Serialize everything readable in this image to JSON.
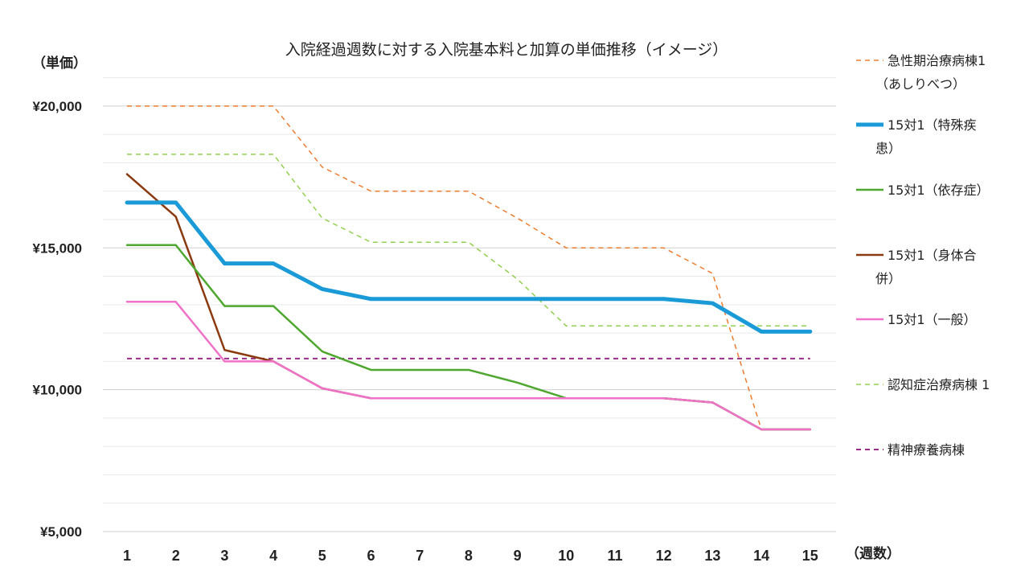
{
  "chart_data": {
    "type": "line",
    "title": "入院経過週数に対する入院基本料と加算の単価推移（イメージ）",
    "ylabel": "（単価）",
    "xlabel": "（週数）",
    "ylim": [
      5000,
      21500
    ],
    "ytick_values": [
      5000,
      10000,
      15000,
      20000
    ],
    "ytick_labels": [
      "¥5,000",
      "¥10,000",
      "¥15,000",
      "¥20,000"
    ],
    "minor_gridline_step": 1000,
    "grid": true,
    "legend_position": "right",
    "x": [
      1,
      2,
      3,
      4,
      5,
      6,
      7,
      8,
      9,
      10,
      11,
      12,
      13,
      14,
      15
    ],
    "series": [
      {
        "name": "急性期治療病棟1（あしりべつ）",
        "legend_lines": [
          "急性期治療病棟1",
          "（あしりべつ）"
        ],
        "color": "#ED7D31",
        "style": "dashed",
        "width": 1.5,
        "values": [
          20000,
          20000,
          20000,
          20000,
          17850,
          17000,
          17000,
          17000,
          16050,
          15000,
          15000,
          15000,
          14100,
          8600,
          8600
        ]
      },
      {
        "name": "15対1（特殊疾患）",
        "legend_lines": [
          "15対1（特殊疾",
          "患）"
        ],
        "color": "#1A9BD7",
        "style": "solid",
        "width": 5,
        "values": [
          16600,
          16600,
          14450,
          14450,
          13550,
          13200,
          13200,
          13200,
          13200,
          13200,
          13200,
          13200,
          13050,
          12050,
          12050
        ]
      },
      {
        "name": "15対1（依存症）",
        "legend_lines": [
          "15対1（依存症）"
        ],
        "color": "#4EA72E",
        "style": "solid",
        "width": 2.5,
        "values": [
          15100,
          15100,
          12950,
          12950,
          11350,
          10700,
          10700,
          10700,
          10250,
          9700,
          9700,
          9700,
          9550,
          8600,
          8600
        ]
      },
      {
        "name": "15対1（身体合併）",
        "legend_lines": [
          "15対1（身体合",
          "併）"
        ],
        "color": "#8B3A0F",
        "style": "solid",
        "width": 2.5,
        "values": [
          17600,
          16100,
          11400,
          11000,
          10050,
          9700,
          9700,
          9700,
          9700,
          9700,
          9700,
          9700,
          9550,
          8600,
          8600
        ]
      },
      {
        "name": "15対1（一般）",
        "legend_lines": [
          "15対1（一般）"
        ],
        "color": "#F072C8",
        "style": "solid",
        "width": 2.5,
        "values": [
          13100,
          13100,
          11000,
          11000,
          10050,
          9700,
          9700,
          9700,
          9700,
          9700,
          9700,
          9700,
          9550,
          8600,
          8600
        ]
      },
      {
        "name": "認知症治療病棟 1",
        "legend_lines": [
          "認知症治療病棟 1"
        ],
        "color": "#92D050",
        "style": "dashed",
        "width": 1.5,
        "values": [
          18300,
          18300,
          18300,
          18300,
          16050,
          15200,
          15200,
          15200,
          13900,
          12250,
          12250,
          12250,
          12250,
          12250,
          12250
        ]
      },
      {
        "name": "精神療養病棟",
        "legend_lines": [
          "精神療養病棟"
        ],
        "color": "#9B2D8A",
        "style": "dashed",
        "width": 2,
        "values": [
          11100,
          11100,
          11100,
          11100,
          11100,
          11100,
          11100,
          11100,
          11100,
          11100,
          11100,
          11100,
          11100,
          11100,
          11100
        ]
      }
    ]
  }
}
